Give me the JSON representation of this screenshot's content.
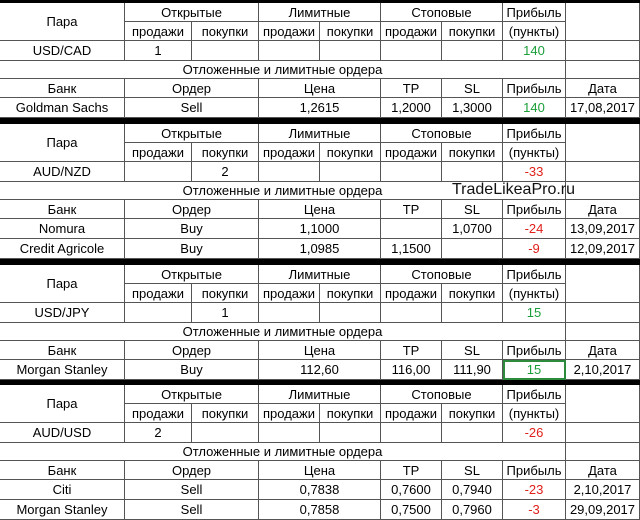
{
  "headers": {
    "pair": "Пара",
    "open": "Открытые",
    "limit": "Лимитные",
    "stop": "Стоповые",
    "profit": "Прибыль",
    "sell": "продажи",
    "buy": "покупки",
    "points": "(пункты)",
    "pending": "Отложенные и лимитные ордера",
    "bank": "Банк",
    "order": "Ордер",
    "price": "Цена",
    "tp": "TP",
    "sl": "SL",
    "date": "Дата"
  },
  "watermark": "TradeLikeaPro.ru",
  "blocks": [
    {
      "pair": "USD/CAD",
      "open_sell": 1,
      "profit": 140,
      "orders": [
        {
          "bank": "Goldman Sachs",
          "order": "Sell",
          "price": "1,2615",
          "tp": "1,2000",
          "sl": "1,3000",
          "profit": 140,
          "date": "17,08,2017"
        }
      ]
    },
    {
      "pair": "AUD/NZD",
      "open_buy": 2,
      "profit": -33,
      "orders": [
        {
          "bank": "Nomura",
          "order": "Buy",
          "price": "1,1000",
          "sl": "1,0700",
          "profit": -24,
          "date": "13,09,2017"
        },
        {
          "bank": "Credit Agricole",
          "order": "Buy",
          "price": "1,0985",
          "tp": "1,1500",
          "profit": -9,
          "date": "12,09,2017"
        }
      ]
    },
    {
      "pair": "USD/JPY",
      "open_buy": 1,
      "profit": 15,
      "orders": [
        {
          "bank": "Morgan Stanley",
          "order": "Buy",
          "price": "112,60",
          "tp": "116,00",
          "sl": "111,90",
          "profit": 15,
          "date": "2,10,2017"
        }
      ]
    },
    {
      "pair": "AUD/USD",
      "open_sell": 2,
      "profit": -26,
      "orders": [
        {
          "bank": "Citi",
          "order": "Sell",
          "price": "0,7838",
          "tp": "0,7600",
          "sl": "0,7940",
          "profit": -23,
          "date": "2,10,2017"
        },
        {
          "bank": "Morgan Stanley",
          "order": "Sell",
          "price": "0,7858",
          "tp": "0,7500",
          "sl": "0,7960",
          "profit": -3,
          "date": "29,09,2017"
        }
      ]
    }
  ]
}
